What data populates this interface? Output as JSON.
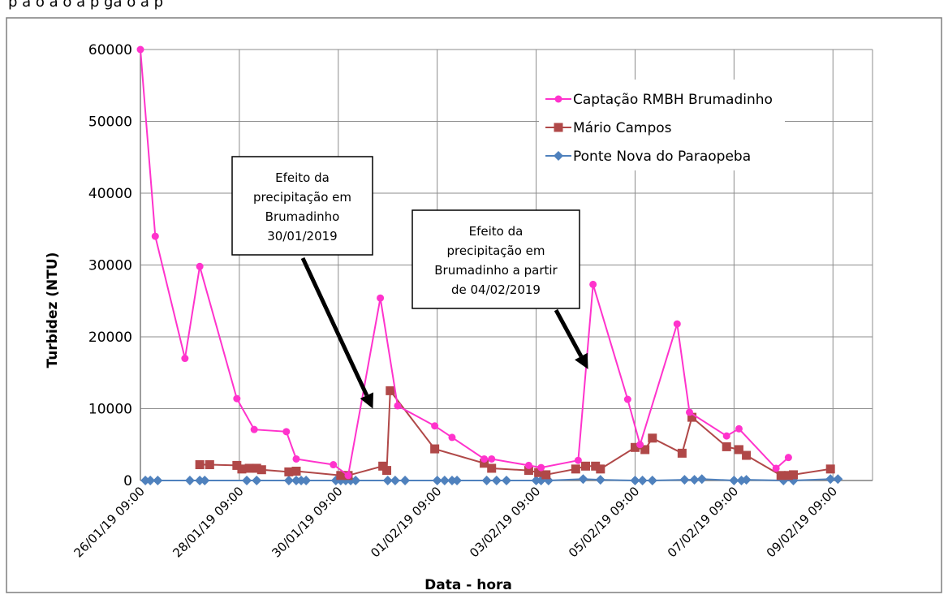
{
  "header_text": "p a o a o a p ga o a p",
  "chart_data": {
    "type": "line",
    "title": "",
    "xlabel": "Data - hora",
    "ylabel": "Turbidez (NTU)",
    "ylim": [
      0,
      60000
    ],
    "yticks": [
      0,
      10000,
      20000,
      30000,
      40000,
      50000,
      60000
    ],
    "ytick_labels": [
      "0",
      "10000",
      "20000",
      "30000",
      "40000",
      "50000",
      "60000"
    ],
    "xtick_labels": [
      "26/01/19 09:00",
      "28/01/19 09:00",
      "30/01/19 09:00",
      "01/02/19 09:00",
      "03/02/19 09:00",
      "05/02/19 09:00",
      "07/02/19 09:00",
      "09/02/19 09:00"
    ],
    "x_unit": "days since 26/01/19 09:00",
    "xlim": [
      0,
      14.8
    ],
    "grid": true,
    "legend_position": "top-right",
    "series": [
      {
        "name": "Captação RMBH Brumadinho",
        "color": "#ff33cc",
        "marker": "circle",
        "points": [
          [
            0.0,
            60000
          ],
          [
            0.3,
            34000
          ],
          [
            0.9,
            17000
          ],
          [
            1.2,
            29800
          ],
          [
            1.95,
            11400
          ],
          [
            2.3,
            7100
          ],
          [
            2.95,
            6800
          ],
          [
            3.15,
            3000
          ],
          [
            3.9,
            2200
          ],
          [
            4.2,
            700
          ],
          [
            4.85,
            25400
          ],
          [
            5.2,
            10400
          ],
          [
            5.95,
            7600
          ],
          [
            6.3,
            6000
          ],
          [
            6.95,
            3000
          ],
          [
            7.1,
            3000
          ],
          [
            7.85,
            2100
          ],
          [
            8.1,
            1800
          ],
          [
            8.85,
            2800
          ],
          [
            9.15,
            27300
          ],
          [
            9.85,
            11300
          ],
          [
            10.1,
            5000
          ],
          [
            10.85,
            21800
          ],
          [
            11.1,
            9500
          ],
          [
            11.85,
            6200
          ],
          [
            12.1,
            7200
          ],
          [
            12.85,
            1700
          ],
          [
            13.1,
            3200
          ]
        ]
      },
      {
        "name": "Mário Campos",
        "color": "#b04848",
        "marker": "square",
        "points": [
          [
            1.2,
            2200
          ],
          [
            1.4,
            2200
          ],
          [
            1.95,
            2100
          ],
          [
            2.05,
            1600
          ],
          [
            2.2,
            1700
          ],
          [
            2.35,
            1700
          ],
          [
            2.45,
            1500
          ],
          [
            3.0,
            1200
          ],
          [
            3.15,
            1300
          ],
          [
            4.05,
            700
          ],
          [
            4.2,
            700
          ],
          [
            4.9,
            2000
          ],
          [
            4.98,
            1400
          ],
          [
            5.05,
            12500
          ],
          [
            5.95,
            4400
          ],
          [
            6.95,
            2400
          ],
          [
            7.1,
            1700
          ],
          [
            7.85,
            1400
          ],
          [
            8.05,
            1100
          ],
          [
            8.2,
            800
          ],
          [
            8.8,
            1600
          ],
          [
            9.0,
            2000
          ],
          [
            9.2,
            2000
          ],
          [
            9.3,
            1600
          ],
          [
            10.0,
            4600
          ],
          [
            10.2,
            4300
          ],
          [
            10.35,
            5900
          ],
          [
            10.95,
            3800
          ],
          [
            11.15,
            8800
          ],
          [
            11.85,
            4700
          ],
          [
            12.1,
            4300
          ],
          [
            12.25,
            3500
          ],
          [
            12.95,
            700
          ],
          [
            13.1,
            700
          ],
          [
            13.2,
            800
          ],
          [
            13.95,
            1600
          ]
        ]
      },
      {
        "name": "Ponte Nova do Paraopeba",
        "color": "#4f81bd",
        "marker": "diamond",
        "points": [
          [
            0.1,
            0
          ],
          [
            0.2,
            0
          ],
          [
            0.35,
            0
          ],
          [
            1.0,
            0
          ],
          [
            1.2,
            0
          ],
          [
            1.3,
            0
          ],
          [
            2.15,
            0
          ],
          [
            2.35,
            0
          ],
          [
            3.0,
            0
          ],
          [
            3.15,
            0
          ],
          [
            3.25,
            0
          ],
          [
            3.35,
            0
          ],
          [
            3.95,
            0
          ],
          [
            4.05,
            0
          ],
          [
            4.15,
            0
          ],
          [
            4.25,
            0
          ],
          [
            4.35,
            0
          ],
          [
            5.0,
            0
          ],
          [
            5.15,
            0
          ],
          [
            5.35,
            0
          ],
          [
            6.0,
            0
          ],
          [
            6.15,
            0
          ],
          [
            6.3,
            0
          ],
          [
            6.4,
            0
          ],
          [
            7.0,
            0
          ],
          [
            7.2,
            0
          ],
          [
            7.4,
            0
          ],
          [
            8.0,
            0
          ],
          [
            8.1,
            0
          ],
          [
            8.25,
            0
          ],
          [
            8.95,
            200
          ],
          [
            9.3,
            100
          ],
          [
            10.0,
            0
          ],
          [
            10.15,
            0
          ],
          [
            10.35,
            0
          ],
          [
            11.0,
            100
          ],
          [
            11.2,
            100
          ],
          [
            11.35,
            200
          ],
          [
            12.0,
            0
          ],
          [
            12.15,
            0
          ],
          [
            12.25,
            100
          ],
          [
            13.0,
            0
          ],
          [
            13.2,
            0
          ],
          [
            13.95,
            200
          ],
          [
            14.1,
            200
          ]
        ]
      }
    ],
    "annotations": [
      {
        "lines": [
          "Efeito da",
          "precipitação em",
          "Brumadinho",
          "30/01/2019"
        ],
        "box": "left",
        "arrow_target": [
          4.7,
          10000
        ]
      },
      {
        "lines": [
          "Efeito da",
          "precipitação em",
          "Brumadinho a partir",
          "de 04/02/2019"
        ],
        "box": "right",
        "arrow_target": [
          9.05,
          15500
        ]
      }
    ]
  }
}
